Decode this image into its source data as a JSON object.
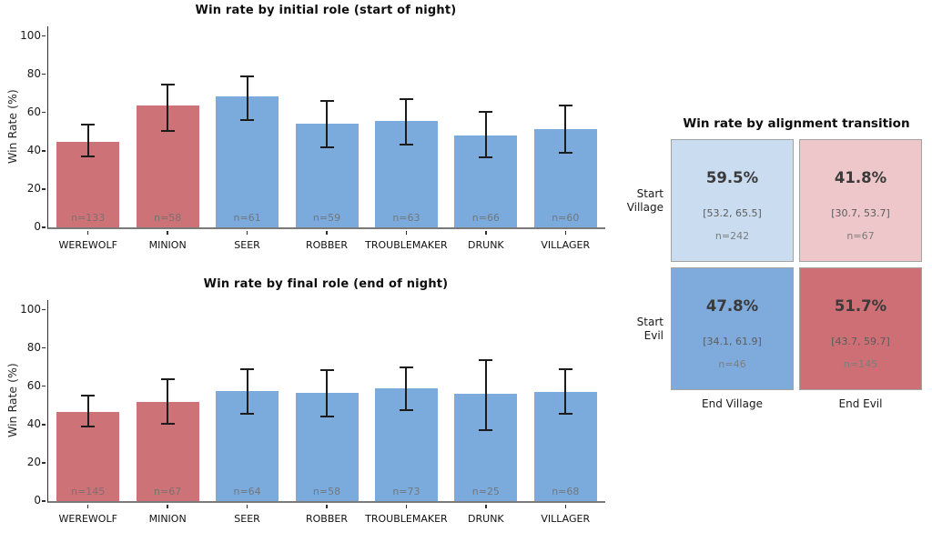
{
  "colors": {
    "evil_bar": "#cd7377",
    "village_bar": "#7babdc",
    "error_bar": "#1c1c1c",
    "axis": "#2e2e2e"
  },
  "chart_data": [
    {
      "type": "bar",
      "title": "Win rate by initial role (start of night)",
      "xlabel": "",
      "ylabel": "Win Rate (%)",
      "ylim": [
        0,
        105
      ],
      "yticks": [
        0,
        20,
        40,
        60,
        80,
        100
      ],
      "grid": false,
      "categories": [
        "WEREWOLF",
        "MINION",
        "SEER",
        "ROBBER",
        "TROUBLEMAKER",
        "DRUNK",
        "VILLAGER"
      ],
      "values": [
        44.7,
        63.5,
        68.5,
        54.0,
        55.4,
        48.1,
        51.3
      ],
      "ci_low": [
        37.0,
        50.6,
        56.2,
        41.6,
        43.3,
        36.7,
        38.9
      ],
      "ci_high": [
        53.5,
        74.7,
        79.0,
        66.2,
        67.0,
        60.3,
        63.6
      ],
      "n_labels": [
        "n=133",
        "n=58",
        "n=61",
        "n=59",
        "n=63",
        "n=66",
        "n=60"
      ],
      "alignments": [
        "evil",
        "evil",
        "village",
        "village",
        "village",
        "village",
        "village"
      ]
    },
    {
      "type": "bar",
      "title": "Win rate by final role (end of night)",
      "xlabel": "",
      "ylabel": "Win Rate (%)",
      "ylim": [
        0,
        105
      ],
      "yticks": [
        0,
        20,
        40,
        60,
        80,
        100
      ],
      "grid": false,
      "categories": [
        "WEREWOLF",
        "MINION",
        "SEER",
        "ROBBER",
        "TROUBLEMAKER",
        "DRUNK",
        "VILLAGER"
      ],
      "values": [
        46.6,
        52.0,
        57.4,
        56.5,
        58.7,
        55.9,
        57.0
      ],
      "ci_low": [
        39.0,
        40.4,
        45.4,
        44.0,
        47.6,
        37.1,
        45.6
      ],
      "ci_high": [
        55.0,
        63.5,
        69.0,
        68.5,
        69.8,
        73.8,
        68.9
      ],
      "n_labels": [
        "n=145",
        "n=67",
        "n=64",
        "n=58",
        "n=73",
        "n=25",
        "n=68"
      ],
      "alignments": [
        "evil",
        "evil",
        "village",
        "village",
        "village",
        "village",
        "village"
      ]
    },
    {
      "type": "heatmap",
      "title": "Win rate by alignment transition",
      "rows": [
        "Start Village",
        "Start Evil"
      ],
      "cols": [
        "End Village",
        "End Evil"
      ],
      "values_pct": [
        [
          59.5,
          41.8
        ],
        [
          47.8,
          51.7
        ]
      ],
      "ci": [
        [
          [
            53.2,
            65.5
          ],
          [
            30.7,
            53.7
          ]
        ],
        [
          [
            34.1,
            61.9
          ],
          [
            43.7,
            59.7
          ]
        ]
      ],
      "n": [
        [
          242,
          67
        ],
        [
          46,
          145
        ]
      ]
    }
  ],
  "matrix": {
    "title": "Win rate by alignment transition",
    "row_labels": [
      {
        "line1": "Start",
        "line2": "Village"
      },
      {
        "line1": "Start",
        "line2": "Evil"
      }
    ],
    "col_labels": [
      "End Village",
      "End Evil"
    ],
    "cells": [
      {
        "value": "59.5%",
        "ci": "[53.2, 65.5]",
        "n": "n=242",
        "color": "#c9dcf0"
      },
      {
        "value": "41.8%",
        "ci": "[30.7, 53.7]",
        "n": "n=67",
        "color": "#edc7ca"
      },
      {
        "value": "47.8%",
        "ci": "[34.1, 61.9]",
        "n": "n=46",
        "color": "#7fabdc"
      },
      {
        "value": "51.7%",
        "ci": "[43.7, 59.7]",
        "n": "n=145",
        "color": "#cd6f75"
      }
    ]
  }
}
